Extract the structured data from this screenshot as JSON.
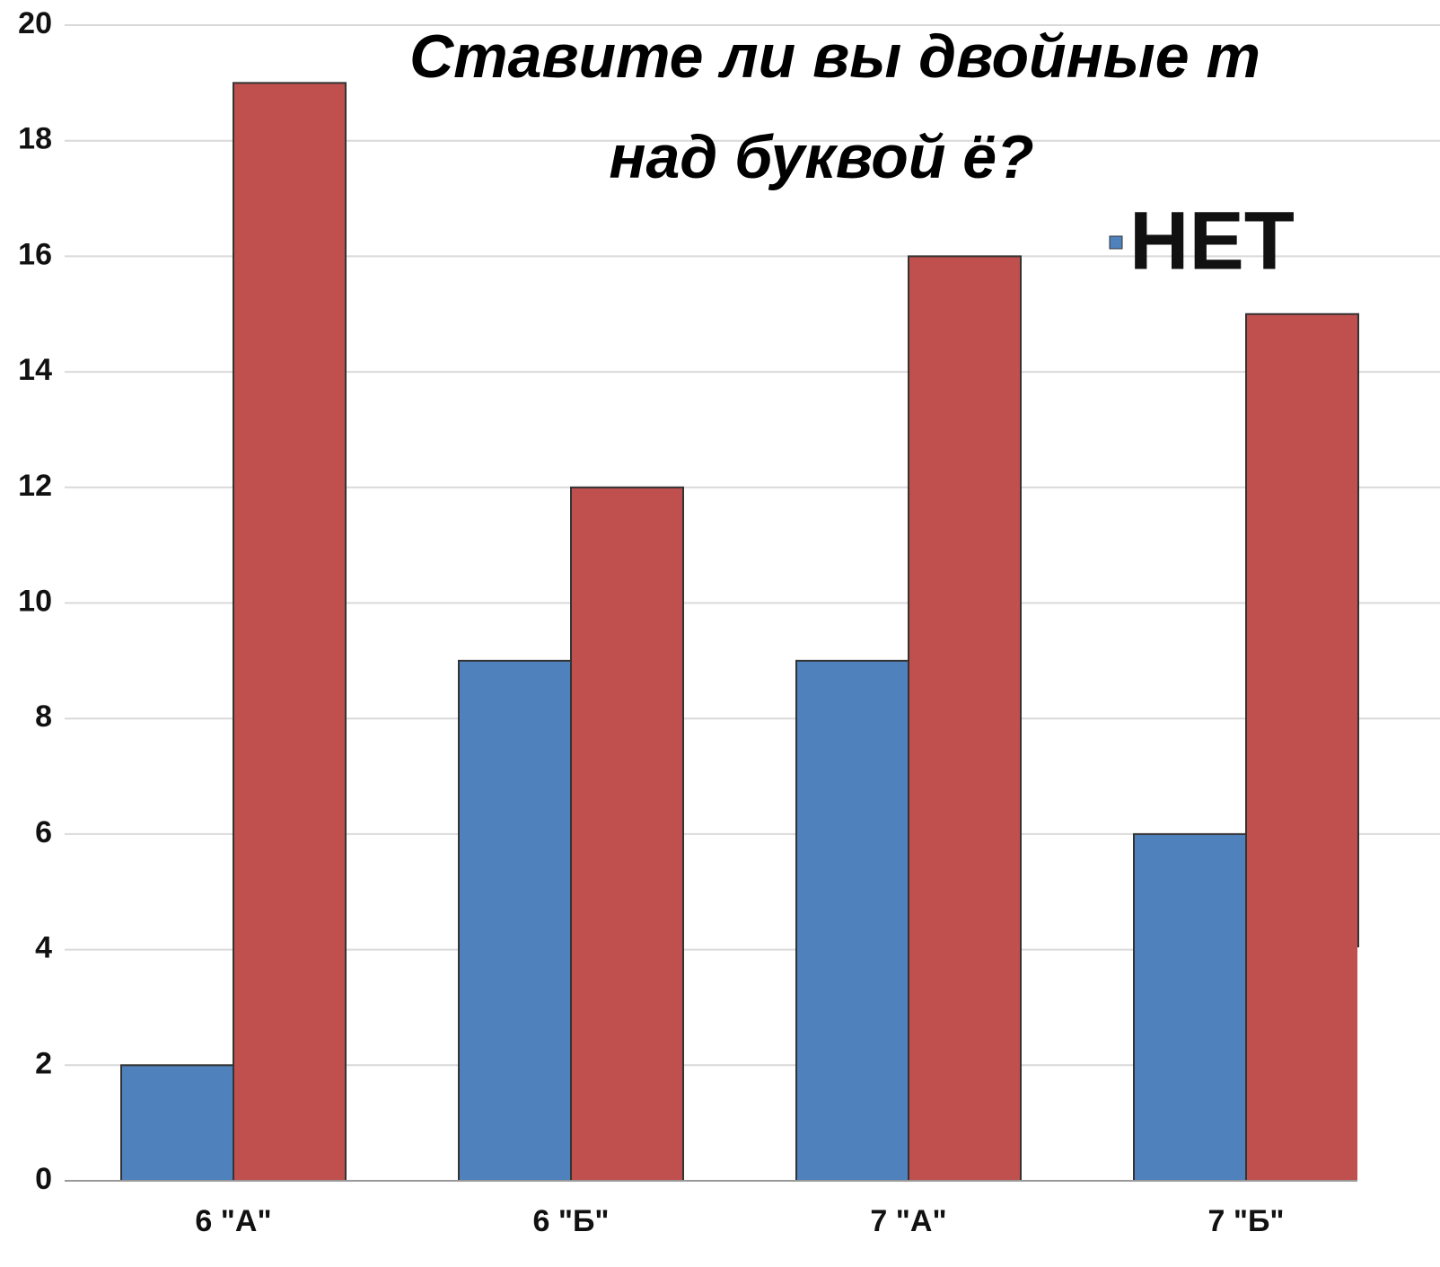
{
  "chart_data": {
    "type": "bar",
    "title_lines": [
      "Ставите ли вы двойные т",
      "над буквой ё?"
    ],
    "categories": [
      "6 \"А\"",
      "6 \"Б\"",
      "7 \"А\"",
      "7 \"Б\""
    ],
    "series": [
      {
        "name": "НЕТ",
        "color": "#4f81bd",
        "values": [
          2,
          9,
          9,
          6
        ]
      },
      {
        "color": "#c0504d",
        "values": [
          19,
          12,
          16,
          15
        ]
      }
    ],
    "ylim": [
      0,
      20
    ],
    "yticks": [
      0,
      2,
      4,
      6,
      8,
      10,
      12,
      14,
      16,
      18,
      20
    ],
    "grid": true
  }
}
